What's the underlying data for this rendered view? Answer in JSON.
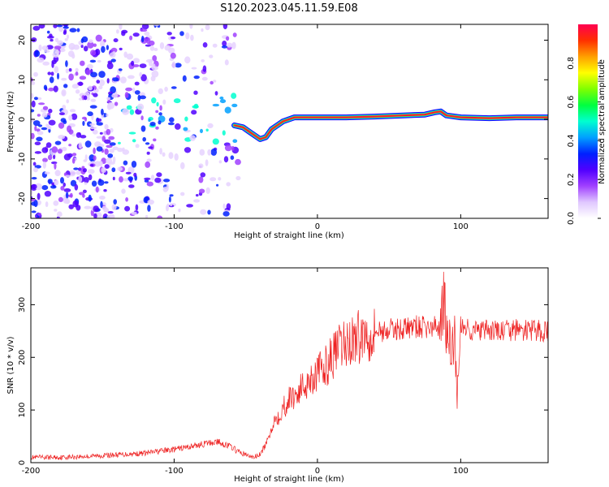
{
  "figure": {
    "title": "S120.2023.045.11.59.E08"
  },
  "chart_data": [
    {
      "type": "heatmap",
      "xlabel": "Height of straight line (km)",
      "ylabel": "Frequency (Hz)",
      "xlim": [
        -200,
        161
      ],
      "ylim": [
        -25,
        24
      ],
      "x_ticks": [
        -200,
        -100,
        0,
        100
      ],
      "y_ticks": [
        -20,
        -10,
        0,
        10,
        20
      ],
      "colorbar": {
        "label": "Normalized spectral amplitude",
        "range": [
          0,
          1
        ],
        "ticks": [
          "0.0",
          "0.2",
          "0.4",
          "0.6",
          "0.8"
        ],
        "tick_values": [
          0.0,
          0.2,
          0.4,
          0.6,
          0.8
        ],
        "colors": [
          "#ffffff",
          "#e0c8ff",
          "#a040ff",
          "#5000ff",
          "#0020ff",
          "#00a0ff",
          "#00ffd0",
          "#00ff40",
          "#80ff00",
          "#ffff00",
          "#ffa000",
          "#ff3000",
          "#ff0050"
        ]
      },
      "ridge_line": {
        "x": [
          -58,
          -52,
          -48,
          -44,
          -40,
          -36,
          -32,
          -28,
          -24,
          -20,
          -16,
          0,
          20,
          40,
          60,
          75,
          82,
          86,
          90,
          100,
          120,
          140,
          161
        ],
        "y": [
          -1.5,
          -2,
          -3,
          -4,
          -5,
          -4.5,
          -2.5,
          -1.5,
          -0.5,
          0,
          0.5,
          0.5,
          0.5,
          0.7,
          1,
          1.2,
          1.8,
          2,
          1,
          0.5,
          0.3,
          0.5,
          0.5
        ]
      },
      "grid": false
    },
    {
      "type": "line",
      "xlabel": "Height of straight line (km)",
      "ylabel": "SNR (10 * v/v)",
      "xlim": [
        -200,
        161
      ],
      "ylim": [
        0,
        370
      ],
      "x_ticks": [
        -200,
        -100,
        0,
        100
      ],
      "y_ticks": [
        0,
        100,
        200,
        300
      ],
      "series": [
        {
          "color": "#ee2222",
          "x": [
            -200,
            -180,
            -160,
            -140,
            -120,
            -110,
            -100,
            -90,
            -80,
            -70,
            -60,
            -55,
            -50,
            -45,
            -40,
            -35,
            -30,
            -25,
            -20,
            -15,
            -10,
            -5,
            0,
            5,
            10,
            15,
            20,
            25,
            30,
            35,
            40,
            45,
            50,
            60,
            70,
            80,
            85,
            88,
            90,
            92,
            95,
            98,
            100,
            105,
            110,
            120,
            130,
            140,
            150,
            161
          ],
          "y": [
            10,
            10,
            12,
            15,
            18,
            22,
            25,
            30,
            35,
            40,
            30,
            20,
            15,
            10,
            15,
            40,
            80,
            100,
            120,
            130,
            145,
            160,
            170,
            180,
            200,
            215,
            225,
            235,
            240,
            245,
            250,
            250,
            252,
            255,
            258,
            255,
            260,
            320,
            250,
            200,
            240,
            150,
            260,
            255,
            250,
            250,
            250,
            252,
            250,
            250
          ]
        }
      ],
      "grid": false
    }
  ]
}
